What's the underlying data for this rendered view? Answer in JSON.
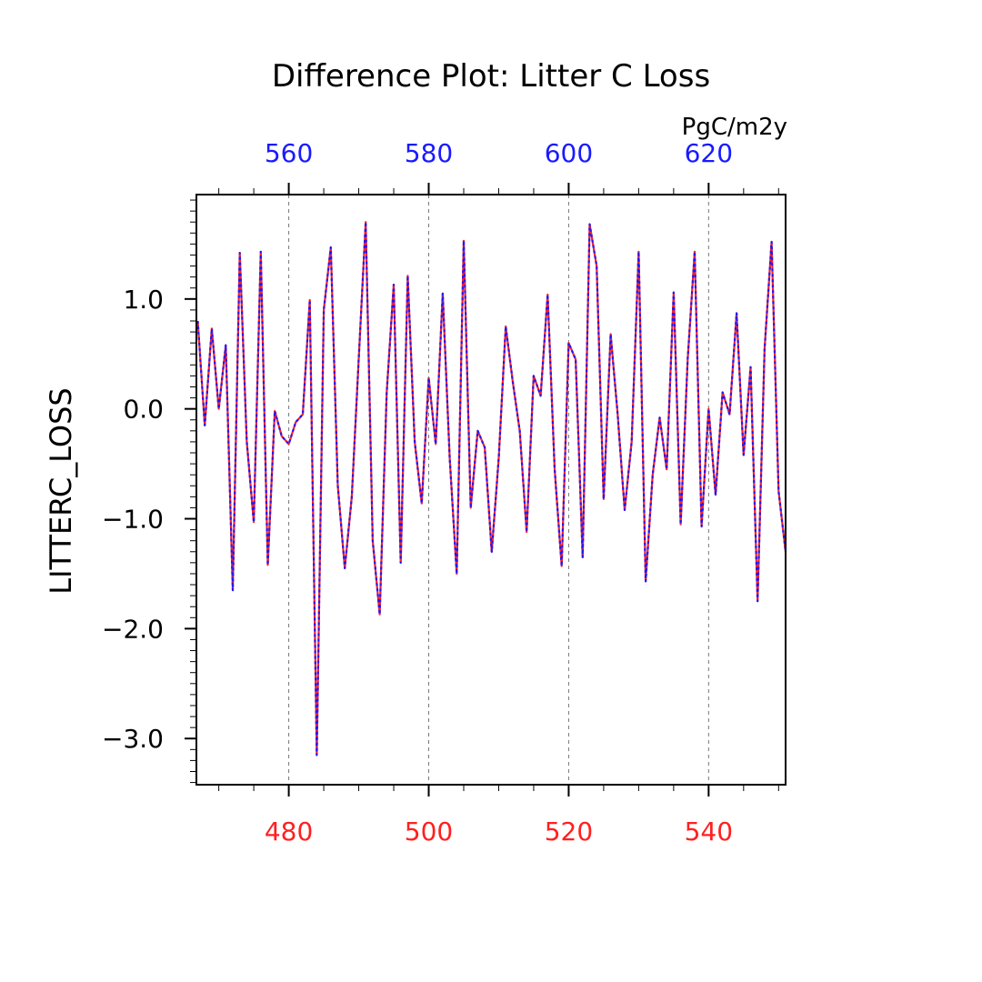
{
  "chart_data": {
    "type": "line",
    "title": "Difference Plot: Litter C Loss",
    "units": "PgC/m2y",
    "ylabel": "LITTERC_LOSS",
    "xlim": [
      466.8,
      551
    ],
    "ylim": [
      -3.42,
      1.95
    ],
    "top_axis_offset": 80,
    "bottom_ticks": [
      480,
      500,
      520,
      540
    ],
    "bottom_tick_labels": [
      "480",
      "500",
      "520",
      "540"
    ],
    "top_tick_labels": [
      "560",
      "580",
      "600",
      "620"
    ],
    "y_ticks": [
      1.0,
      0.0,
      -1.0,
      -2.0,
      -3.0
    ],
    "y_tick_labels": [
      "1.0",
      "0.0",
      "−1.0",
      "−2.0",
      "−3.0"
    ],
    "grid": "vertical-dashed",
    "colors": {
      "series_a": "#ff2020",
      "series_b": "#1a1aff",
      "axis": "#000000",
      "bottom_labels": "#ff2020",
      "top_labels": "#1a1aff"
    },
    "x": [
      467,
      468,
      469,
      470,
      471,
      472,
      473,
      474,
      475,
      476,
      477,
      478,
      479,
      480,
      481,
      482,
      483,
      484,
      485,
      486,
      487,
      488,
      489,
      490,
      491,
      492,
      493,
      494,
      495,
      496,
      497,
      498,
      499,
      500,
      501,
      502,
      503,
      504,
      505,
      506,
      507,
      508,
      509,
      510,
      511,
      512,
      513,
      514,
      515,
      516,
      517,
      518,
      519,
      520,
      521,
      522,
      523,
      524,
      525,
      526,
      527,
      528,
      529,
      530,
      531,
      532,
      533,
      534,
      535,
      536,
      537,
      538,
      539,
      540,
      541,
      542,
      543,
      544,
      545,
      546,
      547,
      548,
      549,
      550,
      551
    ],
    "series": [
      {
        "values": [
          0.8,
          -0.15,
          0.73,
          0.0,
          0.58,
          -1.65,
          1.42,
          -0.3,
          -1.03,
          1.43,
          -1.42,
          -0.02,
          -0.25,
          -0.32,
          -0.12,
          -0.05,
          0.99,
          -3.15,
          0.9,
          1.47,
          -0.7,
          -1.45,
          -0.8,
          0.45,
          1.7,
          -1.2,
          -1.87,
          0.15,
          1.13,
          -1.4,
          1.21,
          -0.3,
          -0.86,
          0.28,
          -0.32,
          1.05,
          -0.45,
          -1.5,
          1.53,
          -0.9,
          -0.2,
          -0.35,
          -1.3,
          -0.45,
          0.75,
          0.25,
          -0.2,
          -1.12,
          0.3,
          0.12,
          1.04,
          -0.55,
          -1.43,
          0.6,
          0.45,
          -1.35,
          1.68,
          1.3,
          -0.82,
          0.68,
          -0.05,
          -0.92,
          -0.3,
          1.43,
          -1.57,
          -0.6,
          -0.08,
          -0.55,
          1.06,
          -1.05,
          0.45,
          1.43,
          -1.07,
          0.0,
          -0.78,
          0.15,
          -0.05,
          0.87,
          -0.42,
          0.38,
          -1.75,
          0.55,
          1.52,
          -0.75,
          -1.3
        ]
      },
      {
        "values": [
          0.8,
          -0.15,
          0.73,
          0.0,
          0.58,
          -1.65,
          1.42,
          -0.3,
          -1.03,
          1.43,
          -1.42,
          -0.02,
          -0.25,
          -0.32,
          -0.12,
          -0.05,
          0.99,
          -3.15,
          0.9,
          1.47,
          -0.7,
          -1.45,
          -0.8,
          0.45,
          1.7,
          -1.2,
          -1.87,
          0.15,
          1.13,
          -1.4,
          1.21,
          -0.3,
          -0.86,
          0.28,
          -0.32,
          1.05,
          -0.45,
          -1.5,
          1.53,
          -0.9,
          -0.2,
          -0.35,
          -1.3,
          -0.45,
          0.75,
          0.25,
          -0.2,
          -1.12,
          0.3,
          0.12,
          1.04,
          -0.55,
          -1.43,
          0.6,
          0.45,
          -1.35,
          1.68,
          1.3,
          -0.82,
          0.68,
          -0.05,
          -0.92,
          -0.3,
          1.43,
          -1.57,
          -0.6,
          -0.08,
          -0.55,
          1.06,
          -1.05,
          0.45,
          1.43,
          -1.07,
          0.0,
          -0.78,
          0.15,
          -0.05,
          0.87,
          -0.42,
          0.38,
          -1.75,
          0.55,
          1.52,
          -0.75,
          -1.3
        ]
      }
    ]
  }
}
